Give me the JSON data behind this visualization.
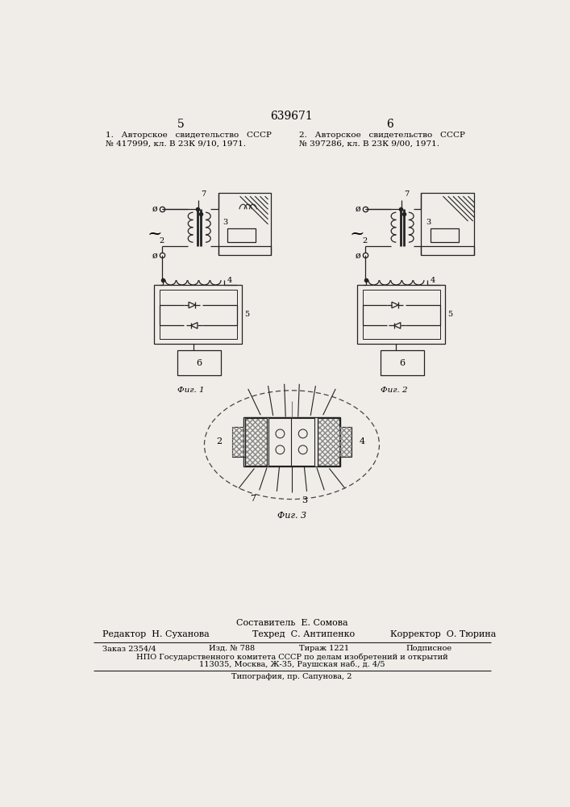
{
  "patent_number": "639671",
  "page_left": "5",
  "page_right": "6",
  "ref1_line1": "1.   Авторское   свидетельство   СССР",
  "ref1_line2": "№ 417999, кл. В 23К 9/10, 1971.",
  "ref2_line1": "2.   Авторское   свидетельство   СССР",
  "ref2_line2": "№ 397286, кл. В 23К 9/00, 1971.",
  "fig1_label": "Фиг. 1",
  "fig2_label": "Фиг. 2",
  "fig3_label": "Фиг. 3",
  "footer_compiler": "Составитель  Е. Сомова",
  "footer_editor": "Редактор  Н. Суханова",
  "footer_tech": "Техред  С. Антипенко",
  "footer_corrector": "Корректор  О. Тюрина",
  "footer_order": "Заказ 2354/4",
  "footer_izd": "Изд. № 788",
  "footer_tiraj": "Тираж 1221",
  "footer_podp": "Подписное",
  "footer_npo": "НПО Государственного комитета СССР по делам изобретений и открытий",
  "footer_addr1": "113035, Москва, Ж-35, Раушская наб., д. 4/5",
  "footer_typo": "Типография, пр. Сапунова, 2",
  "bg_color": "#f0ede8"
}
